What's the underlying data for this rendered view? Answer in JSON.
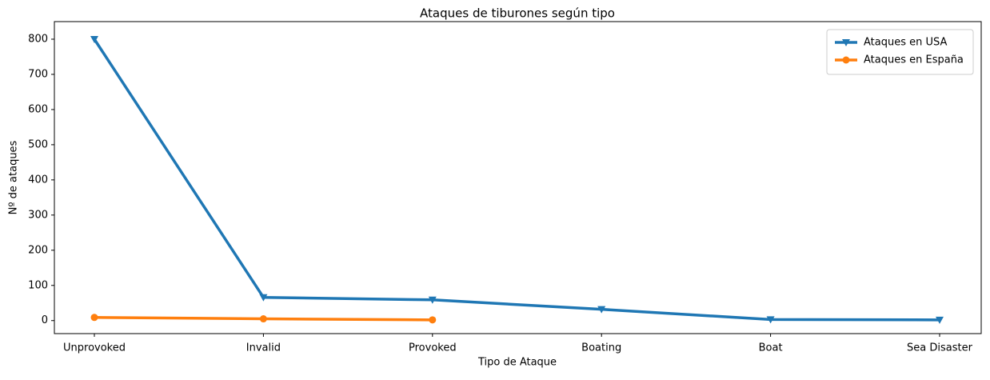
{
  "chart_data": {
    "type": "line",
    "title": "Ataques de tiburones según tipo",
    "xlabel": "Tipo de Ataque",
    "ylabel": "Nº de ataques",
    "categories": [
      "Unprovoked",
      "Invalid",
      "Provoked",
      "Boating",
      "Boat",
      "Sea Disaster"
    ],
    "series": [
      {
        "name": "Ataques en USA",
        "color": "#1f77b4",
        "marker": "triangle-down",
        "values": [
          800,
          66,
          59,
          32,
          3,
          2
        ]
      },
      {
        "name": "Ataques en España",
        "color": "#ff7f0e",
        "marker": "circle",
        "values": [
          9,
          5,
          2,
          null,
          null,
          null
        ]
      }
    ],
    "ylim": [
      -37,
      850
    ],
    "yticks": [
      0,
      100,
      200,
      300,
      400,
      500,
      600,
      700,
      800
    ],
    "legend": "upper right",
    "grid": false
  }
}
